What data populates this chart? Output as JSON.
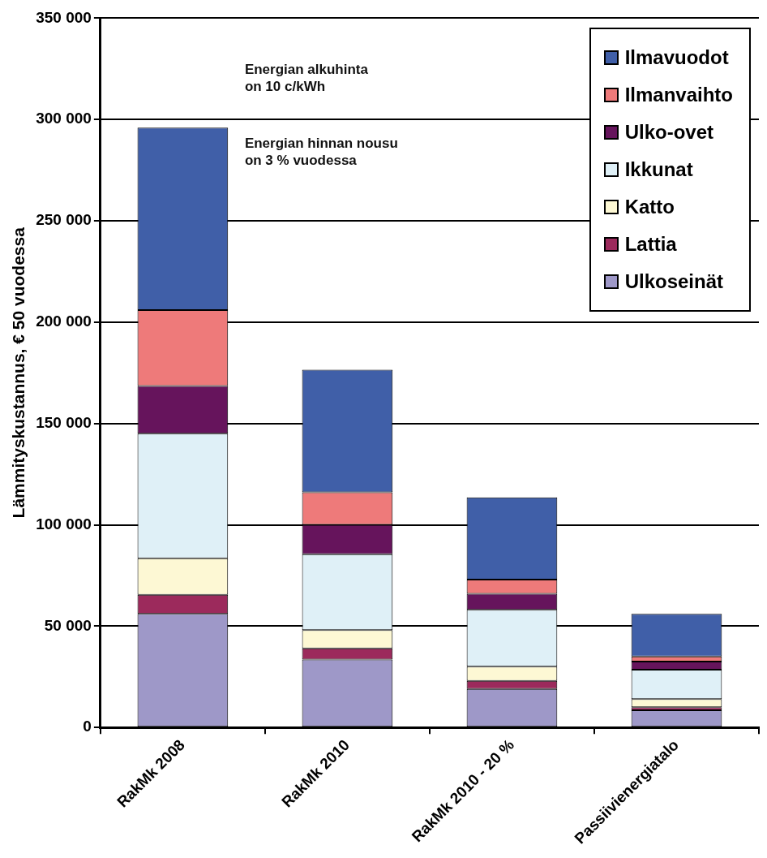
{
  "chart_data": {
    "type": "bar",
    "stacked": true,
    "ylabel": "Lämmityskustannus, € 50 vuodessa",
    "categories": [
      "RakMk 2008",
      "RakMk 2010",
      "RakMk 2010 - 20 %",
      "Passiivienergiatalo"
    ],
    "series": [
      {
        "name": "Ulkoseinät",
        "color": "#9e98c8",
        "values": [
          56000,
          33500,
          19000,
          8500
        ]
      },
      {
        "name": "Lattia",
        "color": "#9c2a5c",
        "values": [
          9500,
          5500,
          4000,
          1500
        ]
      },
      {
        "name": "Katto",
        "color": "#fdf8d4",
        "values": [
          18000,
          9000,
          7000,
          4000
        ]
      },
      {
        "name": "Ikkunat",
        "color": "#dff0f7",
        "values": [
          61500,
          37500,
          28000,
          14500
        ]
      },
      {
        "name": "Ulko-ovet",
        "color": "#66145c",
        "values": [
          23500,
          14500,
          8000,
          4000
        ]
      },
      {
        "name": "Ilmanvaihto",
        "color": "#ee7a7a",
        "values": [
          37500,
          16000,
          7000,
          2500
        ]
      },
      {
        "name": "Ilmavuodot",
        "color": "#405fa8",
        "values": [
          90000,
          60500,
          40500,
          21000
        ]
      }
    ],
    "ylim": [
      0,
      350000
    ],
    "yticks": [
      {
        "value": 0,
        "label": "0"
      },
      {
        "value": 50000,
        "label": "50 000"
      },
      {
        "value": 100000,
        "label": "100 000"
      },
      {
        "value": 150000,
        "label": "150 000"
      },
      {
        "value": 200000,
        "label": "200 000"
      },
      {
        "value": 250000,
        "label": "250 000"
      },
      {
        "value": 300000,
        "label": "300 000"
      },
      {
        "value": 350000,
        "label": "350 000"
      }
    ],
    "grid": "y",
    "legend": "top right",
    "annotations": [
      "Energian alkuhinta\non 10 c/kWh",
      "Energian hinnan nousu\non 3 % vuodessa"
    ]
  }
}
